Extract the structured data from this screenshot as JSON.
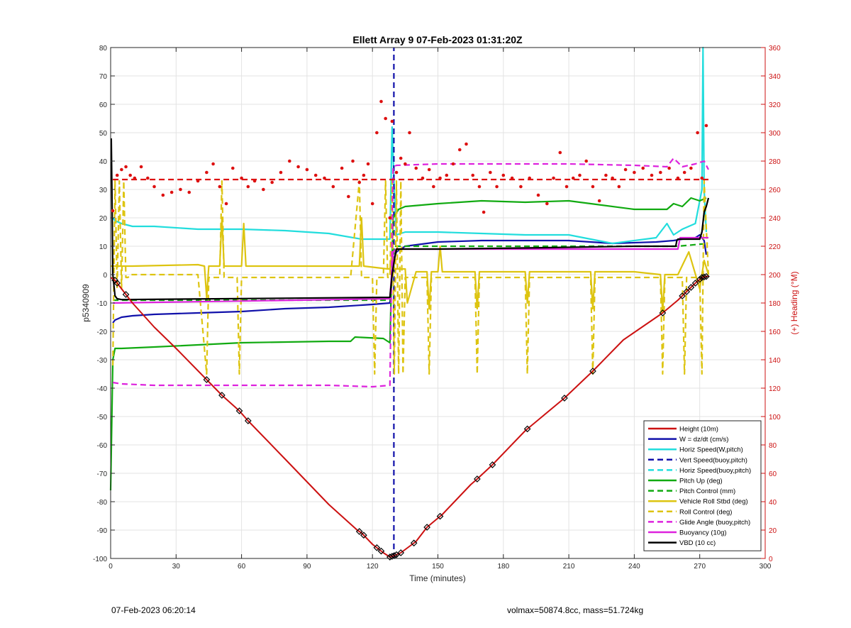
{
  "chart_data": {
    "type": "line",
    "title": "Ellett Array 9 07-Feb-2023 01:31:20Z",
    "xlabel": "Time (minutes)",
    "ylabel": "p5340909",
    "y2label": "(+) Heading (°M)",
    "xlim": [
      0,
      300
    ],
    "ylim": [
      -100,
      80
    ],
    "y2lim": [
      0,
      360
    ],
    "xticks": [
      0,
      30,
      60,
      90,
      120,
      150,
      180,
      210,
      240,
      270,
      300
    ],
    "yticks": [
      -100,
      -90,
      -80,
      -70,
      -60,
      -50,
      -40,
      -30,
      -20,
      -10,
      0,
      10,
      20,
      30,
      40,
      50,
      60,
      70,
      80
    ],
    "y2ticks": [
      0,
      20,
      40,
      60,
      80,
      100,
      120,
      140,
      160,
      180,
      200,
      220,
      240,
      260,
      280,
      300,
      320,
      340,
      360
    ],
    "grid": true,
    "legend_position": "lower-right",
    "series": [
      {
        "name": "Height (10m)",
        "color": "#cc1111",
        "style": "solid",
        "axis": "left",
        "x": [
          0,
          2,
          5,
          10,
          20,
          30,
          44,
          51,
          59,
          63,
          80,
          100,
          113,
          115,
          120,
          125,
          128,
          130,
          133,
          140,
          145,
          152,
          165,
          168,
          175,
          190,
          208,
          221,
          235,
          253,
          260,
          264,
          268,
          271,
          274
        ],
        "y": [
          -1,
          -2,
          -5,
          -10,
          -18.5,
          -26,
          -37,
          -42.5,
          -48,
          -51.5,
          -65,
          -81,
          -90,
          -91,
          -95,
          -98,
          -99.5,
          -99,
          -98,
          -94,
          -89,
          -84.5,
          -74,
          -72,
          -67,
          -55,
          -43.5,
          -34,
          -23,
          -13.5,
          -9,
          -6,
          -3,
          -1,
          -0.5
        ],
        "markers_x": [
          2,
          3,
          7,
          44,
          51,
          59,
          63,
          114,
          116,
          122,
          124,
          128,
          129,
          130,
          131,
          133,
          139,
          145,
          151,
          168,
          175,
          191,
          208,
          221,
          253,
          262,
          264,
          266,
          268,
          270,
          271,
          272,
          273
        ]
      },
      {
        "name": "W = dz/dt (cm/s)",
        "color": "#1111aa",
        "style": "solid",
        "axis": "left",
        "x": [
          1,
          2,
          5,
          10,
          20,
          40,
          60,
          80,
          100,
          120,
          128,
          129.5,
          131,
          135,
          150,
          170,
          190,
          210,
          230,
          250,
          258,
          262,
          268,
          270,
          272,
          273
        ],
        "y": [
          -17,
          -16,
          -15,
          -14.5,
          -14,
          -13.5,
          -13,
          -12,
          -11.5,
          -10.5,
          -10,
          5,
          8,
          10,
          11.5,
          12,
          12,
          12,
          11,
          11.5,
          12,
          12.5,
          13,
          14,
          12,
          7
        ]
      },
      {
        "name": "Horiz Speed(W,pitch)",
        "color": "#22dddd",
        "style": "solid",
        "axis": "left",
        "x": [
          1,
          2,
          5,
          10,
          20,
          40,
          60,
          80,
          100,
          115,
          120,
          125,
          128,
          129,
          130,
          131,
          135,
          150,
          170,
          190,
          210,
          230,
          250,
          255,
          258,
          262,
          268,
          271,
          271.5,
          272,
          273
        ],
        "y": [
          20,
          19,
          18,
          17,
          17,
          16,
          16,
          15.5,
          14.5,
          12.5,
          12.5,
          12.5,
          12.5,
          52,
          30,
          14,
          15,
          15,
          14.5,
          14,
          14,
          11,
          13,
          18,
          14,
          16,
          18,
          30,
          80,
          30,
          15
        ]
      },
      {
        "name": "Vert Speed(buoy,pitch)",
        "color": "#1111aa",
        "style": "dashed",
        "axis": "left",
        "x": [
          129.8,
          129.8
        ],
        "y": [
          -100,
          80
        ]
      },
      {
        "name": "Horiz Speed(buoy,pitch)",
        "color": "#22dddd",
        "style": "dashed",
        "axis": "left",
        "x": [],
        "y": []
      },
      {
        "name": "Pitch Up (deg)",
        "color": "#11aa11",
        "style": "solid",
        "axis": "left",
        "x": [
          0,
          1,
          2,
          5,
          20,
          60,
          100,
          110,
          112,
          125,
          128,
          129.5,
          132,
          135,
          150,
          170,
          190,
          210,
          220,
          240,
          255,
          258,
          262,
          266,
          270,
          273
        ],
        "y": [
          -76,
          -30,
          -26,
          -26,
          -25.5,
          -24,
          -23.5,
          -23.5,
          -22,
          -22.5,
          -24,
          20,
          23,
          24,
          25,
          26,
          25.5,
          26,
          25,
          23,
          23,
          25,
          24,
          27,
          26,
          27
        ]
      },
      {
        "name": "Pitch Control (mm)",
        "color": "#11aa11",
        "style": "dashed",
        "axis": "left",
        "x": [
          1,
          128,
          130,
          260,
          274
        ],
        "y": [
          -9,
          -9,
          10,
          10,
          11
        ]
      },
      {
        "name": "Vehicle Roll Stbd (deg)",
        "color": "#ddc411",
        "style": "solid",
        "axis": "left",
        "x": [
          0,
          5,
          10,
          40,
          43,
          44,
          45,
          50,
          51,
          52,
          60,
          61,
          62,
          100,
          114,
          115,
          116,
          127,
          128,
          129,
          130,
          135,
          136,
          140,
          145,
          146,
          147,
          150,
          151,
          152,
          160,
          167,
          168,
          169,
          190,
          191,
          192,
          200,
          220,
          221,
          222,
          240,
          252,
          253,
          254,
          260,
          265,
          270,
          272,
          274
        ],
        "y": [
          3,
          3,
          3,
          3.5,
          3,
          -8,
          3,
          3,
          20,
          3,
          3,
          18,
          3,
          3,
          3,
          20,
          3,
          2,
          2,
          8,
          2,
          2,
          -10,
          1,
          1,
          -12,
          1,
          1,
          10,
          1,
          1,
          1,
          -12,
          1,
          1,
          -10,
          1,
          1,
          1,
          -12,
          1,
          1,
          0,
          -13,
          0,
          0,
          8,
          -5,
          5,
          0
        ]
      },
      {
        "name": "Roll Control (deg)",
        "color": "#ddc411",
        "style": "dashed",
        "axis": "left",
        "x": [
          1,
          2,
          3,
          4,
          5,
          6,
          7,
          8,
          9,
          40,
          44,
          45,
          50,
          51,
          52,
          58,
          59,
          60,
          110,
          114,
          115,
          116,
          120,
          121,
          122,
          125,
          126,
          127,
          128,
          129,
          130,
          131,
          132,
          133,
          134,
          135,
          140,
          145,
          146,
          147,
          150,
          167,
          168,
          169,
          190,
          191,
          192,
          220,
          221,
          222,
          252,
          253,
          254,
          262,
          263,
          264,
          270,
          271,
          272,
          274
        ],
        "y": [
          -32,
          33,
          -5,
          33,
          -5,
          33,
          -1,
          -1,
          0,
          0,
          -35,
          -1,
          -1,
          33,
          -1,
          -1,
          -35,
          -1,
          -1,
          33,
          -1,
          -1,
          -1,
          -35,
          -1,
          -1,
          33,
          -1,
          -1,
          33,
          -35,
          33,
          -35,
          33,
          -35,
          -1,
          -1,
          -1,
          -35,
          -1,
          -1,
          -1,
          -35,
          -1,
          -1,
          -35,
          -1,
          -1,
          -35,
          -1,
          -1,
          -35,
          -1,
          -1,
          -35,
          -1,
          -1,
          -35,
          33,
          0
        ]
      },
      {
        "name": "Glide Angle (buoy,pitch)",
        "color": "#dd22dd",
        "style": "dashed",
        "axis": "left",
        "x": [
          1,
          5,
          20,
          60,
          100,
          120,
          128,
          129.5,
          131,
          150,
          180,
          210,
          240,
          255,
          258,
          262,
          268,
          272,
          274
        ],
        "y": [
          -38,
          -38.5,
          -39,
          -39,
          -39,
          -39.5,
          -39,
          38,
          38.5,
          39,
          39,
          39,
          38.5,
          38,
          41,
          38,
          39,
          40,
          37
        ]
      },
      {
        "name": "Buoyancy (10g)",
        "color": "#dd22dd",
        "style": "solid",
        "axis": "left",
        "x": [
          1,
          128,
          129.5,
          131,
          260,
          261,
          274
        ],
        "y": [
          -10,
          -8.5,
          8,
          9,
          9,
          13,
          13
        ]
      },
      {
        "name": "VBD (10 cc)",
        "color": "#000000",
        "style": "solid",
        "axis": "left",
        "x": [
          0.3,
          0.6,
          1,
          2,
          3,
          5,
          128,
          129,
          130,
          131,
          150,
          200,
          240,
          259,
          259.5,
          260,
          270,
          271,
          272,
          273,
          274
        ],
        "y": [
          48,
          30,
          0,
          -7.5,
          -8.5,
          -8.8,
          -8,
          0,
          5,
          9,
          9,
          9.5,
          10,
          10,
          12,
          12.5,
          12.5,
          15,
          22,
          24,
          27
        ]
      },
      {
        "name": "Heading",
        "color": "#dd1111",
        "style": "dots",
        "axis": "right",
        "x": [
          1,
          3,
          5,
          7,
          9,
          11,
          14,
          17,
          20,
          24,
          28,
          32,
          36,
          40,
          44,
          47,
          50,
          53,
          56,
          60,
          63,
          66,
          70,
          74,
          78,
          82,
          86,
          90,
          94,
          98,
          102,
          106,
          109,
          111,
          114,
          116,
          118,
          120,
          122,
          124,
          126,
          128,
          129,
          131,
          133,
          135,
          137,
          140,
          143,
          146,
          148,
          151,
          154,
          157,
          160,
          163,
          166,
          169,
          171,
          174,
          177,
          180,
          184,
          188,
          192,
          196,
          200,
          203,
          206,
          209,
          212,
          215,
          218,
          221,
          224,
          227,
          230,
          233,
          236,
          240,
          244,
          248,
          252,
          256,
          260,
          263,
          266,
          269,
          271,
          273
        ],
        "y": [
          245,
          270,
          274,
          276,
          270,
          268,
          276,
          268,
          262,
          256,
          258,
          260,
          258,
          266,
          272,
          278,
          262,
          250,
          275,
          268,
          262,
          266,
          260,
          265,
          272,
          280,
          276,
          274,
          270,
          268,
          262,
          275,
          255,
          280,
          265,
          270,
          278,
          250,
          300,
          322,
          310,
          240,
          308,
          272,
          282,
          278,
          300,
          275,
          268,
          274,
          262,
          268,
          270,
          278,
          288,
          292,
          270,
          262,
          244,
          272,
          262,
          270,
          268,
          262,
          268,
          256,
          250,
          268,
          286,
          262,
          268,
          270,
          280,
          262,
          252,
          270,
          268,
          262,
          274,
          272,
          275,
          270,
          272,
          275,
          268,
          272,
          275,
          300,
          268,
          305
        ]
      },
      {
        "name": "Heading target",
        "color": "#dd1111",
        "style": "dashed",
        "axis": "right",
        "x": [
          1,
          274
        ],
        "y": [
          267,
          267
        ]
      }
    ],
    "legend": [
      "Height (10m)",
      "W = dz/dt (cm/s)",
      "Horiz Speed(W,pitch)",
      "Vert Speed(buoy,pitch)",
      "Horiz Speed(buoy,pitch)",
      "Pitch Up (deg)",
      "Pitch Control (mm)",
      "Vehicle Roll Stbd (deg)",
      "Roll Control (deg)",
      "Glide Angle (buoy,pitch)",
      "Buoyancy (10g)",
      "VBD (10 cc)"
    ]
  },
  "footer": {
    "left": "07-Feb-2023 06:20:14",
    "right": "volmax=50874.8cc, mass=51.724kg"
  }
}
